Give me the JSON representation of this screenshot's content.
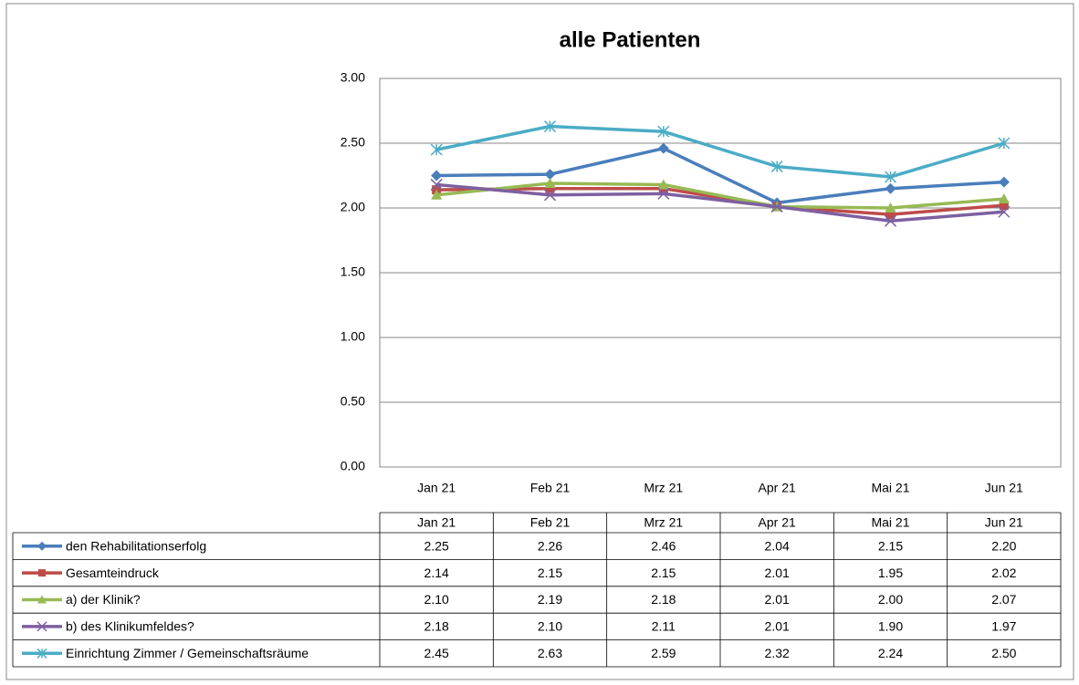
{
  "chart_data": {
    "type": "line",
    "title": "alle Patienten",
    "categories": [
      "Jan 21",
      "Feb 21",
      "Mrz 21",
      "Apr 21",
      "Mai 21",
      "Jun 21"
    ],
    "ylim": [
      0,
      3
    ],
    "yticks": [
      {
        "value": 0,
        "label": "0.00"
      },
      {
        "value": 0.5,
        "label": "0.50"
      },
      {
        "value": 1,
        "label": "1.00"
      },
      {
        "value": 1.5,
        "label": "1.50"
      },
      {
        "value": 2,
        "label": "2.00"
      },
      {
        "value": 2.5,
        "label": "2.50"
      },
      {
        "value": 3,
        "label": "3.00"
      }
    ],
    "grid": true,
    "series": [
      {
        "name": "den Rehabilitationserfolg",
        "color": "#4a7ebb",
        "marker": "diamond",
        "values": [
          2.25,
          2.26,
          2.46,
          2.04,
          2.15,
          2.2
        ],
        "value_labels": [
          "2.25",
          "2.26",
          "2.46",
          "2.04",
          "2.15",
          "2.20"
        ]
      },
      {
        "name": "Gesamteindruck",
        "color": "#be4b48",
        "marker": "square",
        "values": [
          2.14,
          2.15,
          2.15,
          2.01,
          1.95,
          2.02
        ],
        "value_labels": [
          "2.14",
          "2.15",
          "2.15",
          "2.01",
          "1.95",
          "2.02"
        ]
      },
      {
        "name": "a) der Klinik?",
        "color": "#98b954",
        "marker": "triangle",
        "values": [
          2.1,
          2.19,
          2.18,
          2.01,
          2.0,
          2.07
        ],
        "value_labels": [
          "2.10",
          "2.19",
          "2.18",
          "2.01",
          "2.00",
          "2.07"
        ]
      },
      {
        "name": "b) des Klinikumfeldes?",
        "color": "#7d60a0",
        "marker": "x",
        "values": [
          2.18,
          2.1,
          2.11,
          2.01,
          1.9,
          1.97
        ],
        "value_labels": [
          "2.18",
          "2.10",
          "2.11",
          "2.01",
          "1.90",
          "1.97"
        ]
      },
      {
        "name": "Einrichtung Zimmer / Gemeinschaftsräume",
        "color": "#4bacc6",
        "marker": "star",
        "values": [
          2.45,
          2.63,
          2.59,
          2.32,
          2.24,
          2.5
        ],
        "value_labels": [
          "2.45",
          "2.63",
          "2.59",
          "2.32",
          "2.24",
          "2.50"
        ]
      }
    ]
  }
}
